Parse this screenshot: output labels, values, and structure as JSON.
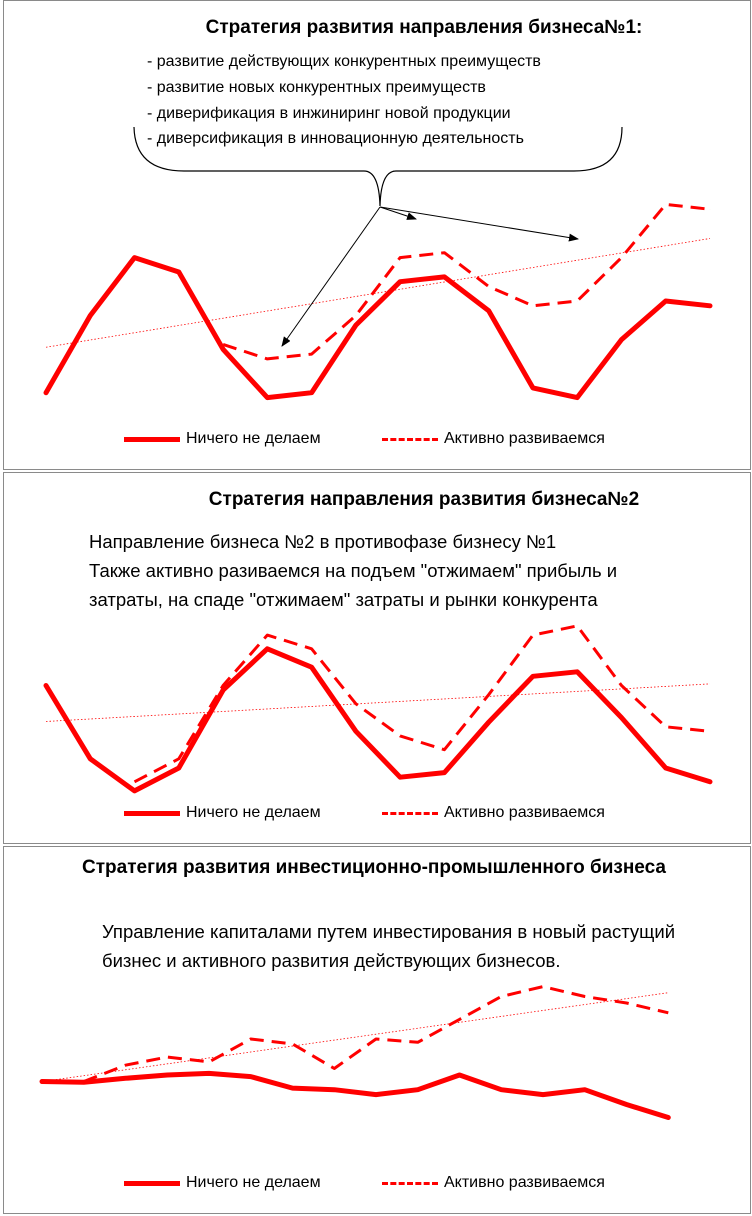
{
  "colors": {
    "series": "#ff0000",
    "trend": "#ff0000",
    "annotation": "#000000"
  },
  "legend": {
    "solid": "Ничего не делаем",
    "dashed": "Активно развиваемся"
  },
  "panels": [
    {
      "title": "Стратегия развития направления бизнеса№1:",
      "lines": [
        "- развитие действующих конкурентных преимуществ",
        "- развитие новых конкурентных преимуществ",
        "- диверификация в инжиниринг новой продукции",
        "- диверсификация в инновационную деятельность"
      ]
    },
    {
      "title": "Стратегия направления развития бизнеса№2",
      "lines": [
        "Направление бизнеса №2 в противофазе бизнесу №1",
        "Также активно разиваемся на подъем \"отжимаем\" прибыль и",
        "затраты, на спаде \"отжимаем\" затраты и рынки конкурента"
      ]
    },
    {
      "title": "Стратегия развития инвестиционно-промышленного бизнеса",
      "lines": [
        "Управление капиталами путем инвестирования в  новый",
        "растущий бизнес и  активного развития действующих",
        "бизнесов."
      ]
    }
  ],
  "chart_data": [
    {
      "type": "line",
      "x": [
        1,
        2,
        3,
        4,
        5,
        6,
        7,
        8,
        9,
        10,
        11,
        12,
        13,
        14,
        15,
        16
      ],
      "series": [
        {
          "name": "Ничего не делаем",
          "style": "solid",
          "values": [
            4.0,
            5.6,
            6.8,
            6.5,
            4.9,
            3.9,
            4.0,
            5.4,
            6.3,
            6.4,
            5.7,
            4.1,
            3.9,
            5.1,
            5.9,
            5.8
          ]
        },
        {
          "name": "Активно развиваемся",
          "style": "dashed",
          "values": [
            null,
            null,
            null,
            null,
            5.0,
            4.7,
            4.8,
            5.6,
            6.8,
            6.9,
            6.2,
            5.8,
            5.9,
            6.8,
            7.9,
            7.8
          ]
        }
      ],
      "trendline": "linear",
      "annotation": "brace with arrows pointing to the growth of the dashed series"
    },
    {
      "type": "line",
      "x": [
        1,
        2,
        3,
        4,
        5,
        6,
        7,
        8,
        9,
        10,
        11,
        12,
        13,
        14,
        15,
        16
      ],
      "series": [
        {
          "name": "Ничего не делаем",
          "style": "solid",
          "values": [
            6.0,
            4.4,
            3.7,
            4.2,
            5.9,
            6.8,
            6.4,
            5.0,
            4.0,
            4.1,
            5.2,
            6.2,
            6.3,
            5.3,
            4.2,
            3.9
          ]
        },
        {
          "name": "Активно развиваемся",
          "style": "dashed",
          "values": [
            null,
            null,
            3.9,
            4.4,
            6.0,
            7.1,
            6.8,
            5.6,
            4.9,
            4.6,
            5.8,
            7.1,
            7.3,
            6.0,
            5.1,
            5.0
          ]
        }
      ],
      "trendline": "linear"
    },
    {
      "type": "line",
      "x": [
        1,
        2,
        3,
        4,
        5,
        6,
        7,
        8,
        9,
        10,
        11,
        12,
        13,
        14,
        15,
        16,
        17
      ],
      "series": [
        {
          "name": "Ничего не делаем",
          "style": "solid",
          "values": [
            5.0,
            4.98,
            5.1,
            5.2,
            5.25,
            5.15,
            4.8,
            4.75,
            4.6,
            4.75,
            5.2,
            4.75,
            4.6,
            4.75,
            4.3,
            3.9,
            null
          ]
        },
        {
          "name": "Активно развиваемся",
          "style": "dashed",
          "values": [
            null,
            5.0,
            5.5,
            5.75,
            5.6,
            6.3,
            6.15,
            5.4,
            6.3,
            6.2,
            6.9,
            7.6,
            7.9,
            7.6,
            7.4,
            7.1,
            null
          ]
        }
      ],
      "trendline": "linear"
    }
  ]
}
